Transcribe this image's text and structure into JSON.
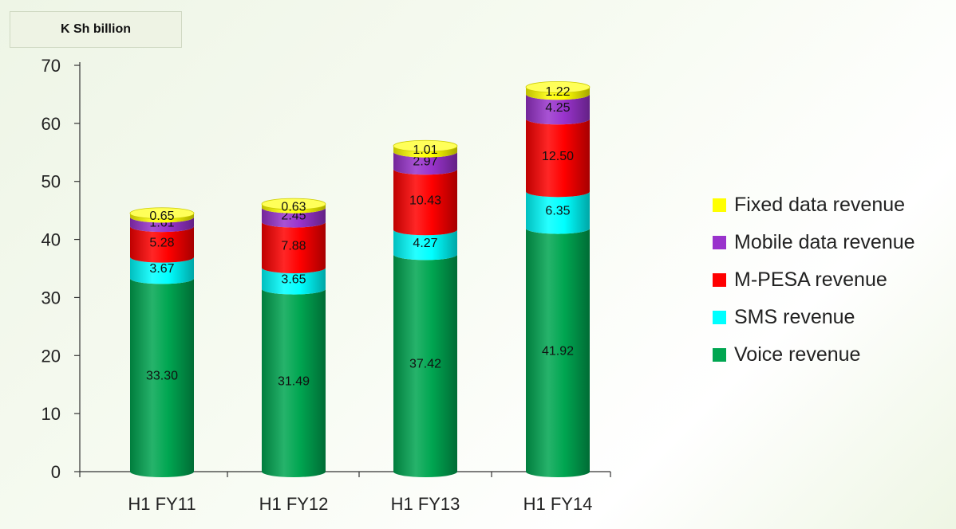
{
  "unit_label": "K Sh billion",
  "colors": {
    "Fixed data revenue": "#ffff00",
    "Mobile data revenue": "#9933cc",
    "M-PESA revenue": "#ff0000",
    "SMS revenue": "#00ffff",
    "Voice revenue": "#00a651"
  },
  "legend": [
    {
      "label": "Fixed data revenue",
      "color": "#ffff00"
    },
    {
      "label": "Mobile data revenue",
      "color": "#9933cc"
    },
    {
      "label": "M-PESA revenue",
      "color": "#ff0000"
    },
    {
      "label": "SMS revenue",
      "color": "#00ffff"
    },
    {
      "label": "Voice revenue",
      "color": "#00a651"
    }
  ],
  "chart_data": {
    "type": "bar",
    "stacked": true,
    "bar_style": "cylinder",
    "categories": [
      "H1 FY11",
      "H1 FY12",
      "H1 FY13",
      "H1 FY14"
    ],
    "series": [
      {
        "name": "Voice revenue",
        "values": [
          33.3,
          31.49,
          37.42,
          41.92
        ],
        "labels": [
          "33.30",
          "31.49",
          "37.42",
          "41.92"
        ]
      },
      {
        "name": "SMS revenue",
        "values": [
          3.67,
          3.65,
          4.27,
          6.35
        ],
        "labels": [
          "3.67",
          "3.65",
          "4.27",
          "6.35"
        ]
      },
      {
        "name": "M-PESA revenue",
        "values": [
          5.28,
          7.88,
          10.43,
          12.5
        ],
        "labels": [
          "5.28",
          "7.88",
          "10.43",
          "12.50"
        ]
      },
      {
        "name": "Mobile data revenue",
        "values": [
          1.61,
          2.45,
          2.97,
          4.25
        ],
        "labels": [
          "1.61",
          "2.45",
          "2.97",
          "4.25"
        ]
      },
      {
        "name": "Fixed data revenue",
        "values": [
          0.65,
          0.63,
          1.01,
          1.22
        ],
        "labels": [
          "0.65",
          "0.63",
          "1.01",
          "1.22"
        ]
      }
    ],
    "ylim": [
      0,
      70
    ],
    "yticks": [
      "0",
      "10",
      "20",
      "30",
      "40",
      "50",
      "60",
      "70"
    ],
    "ylabel": "K Sh billion",
    "xlabel": "",
    "grid": false,
    "legend_position": "right"
  }
}
